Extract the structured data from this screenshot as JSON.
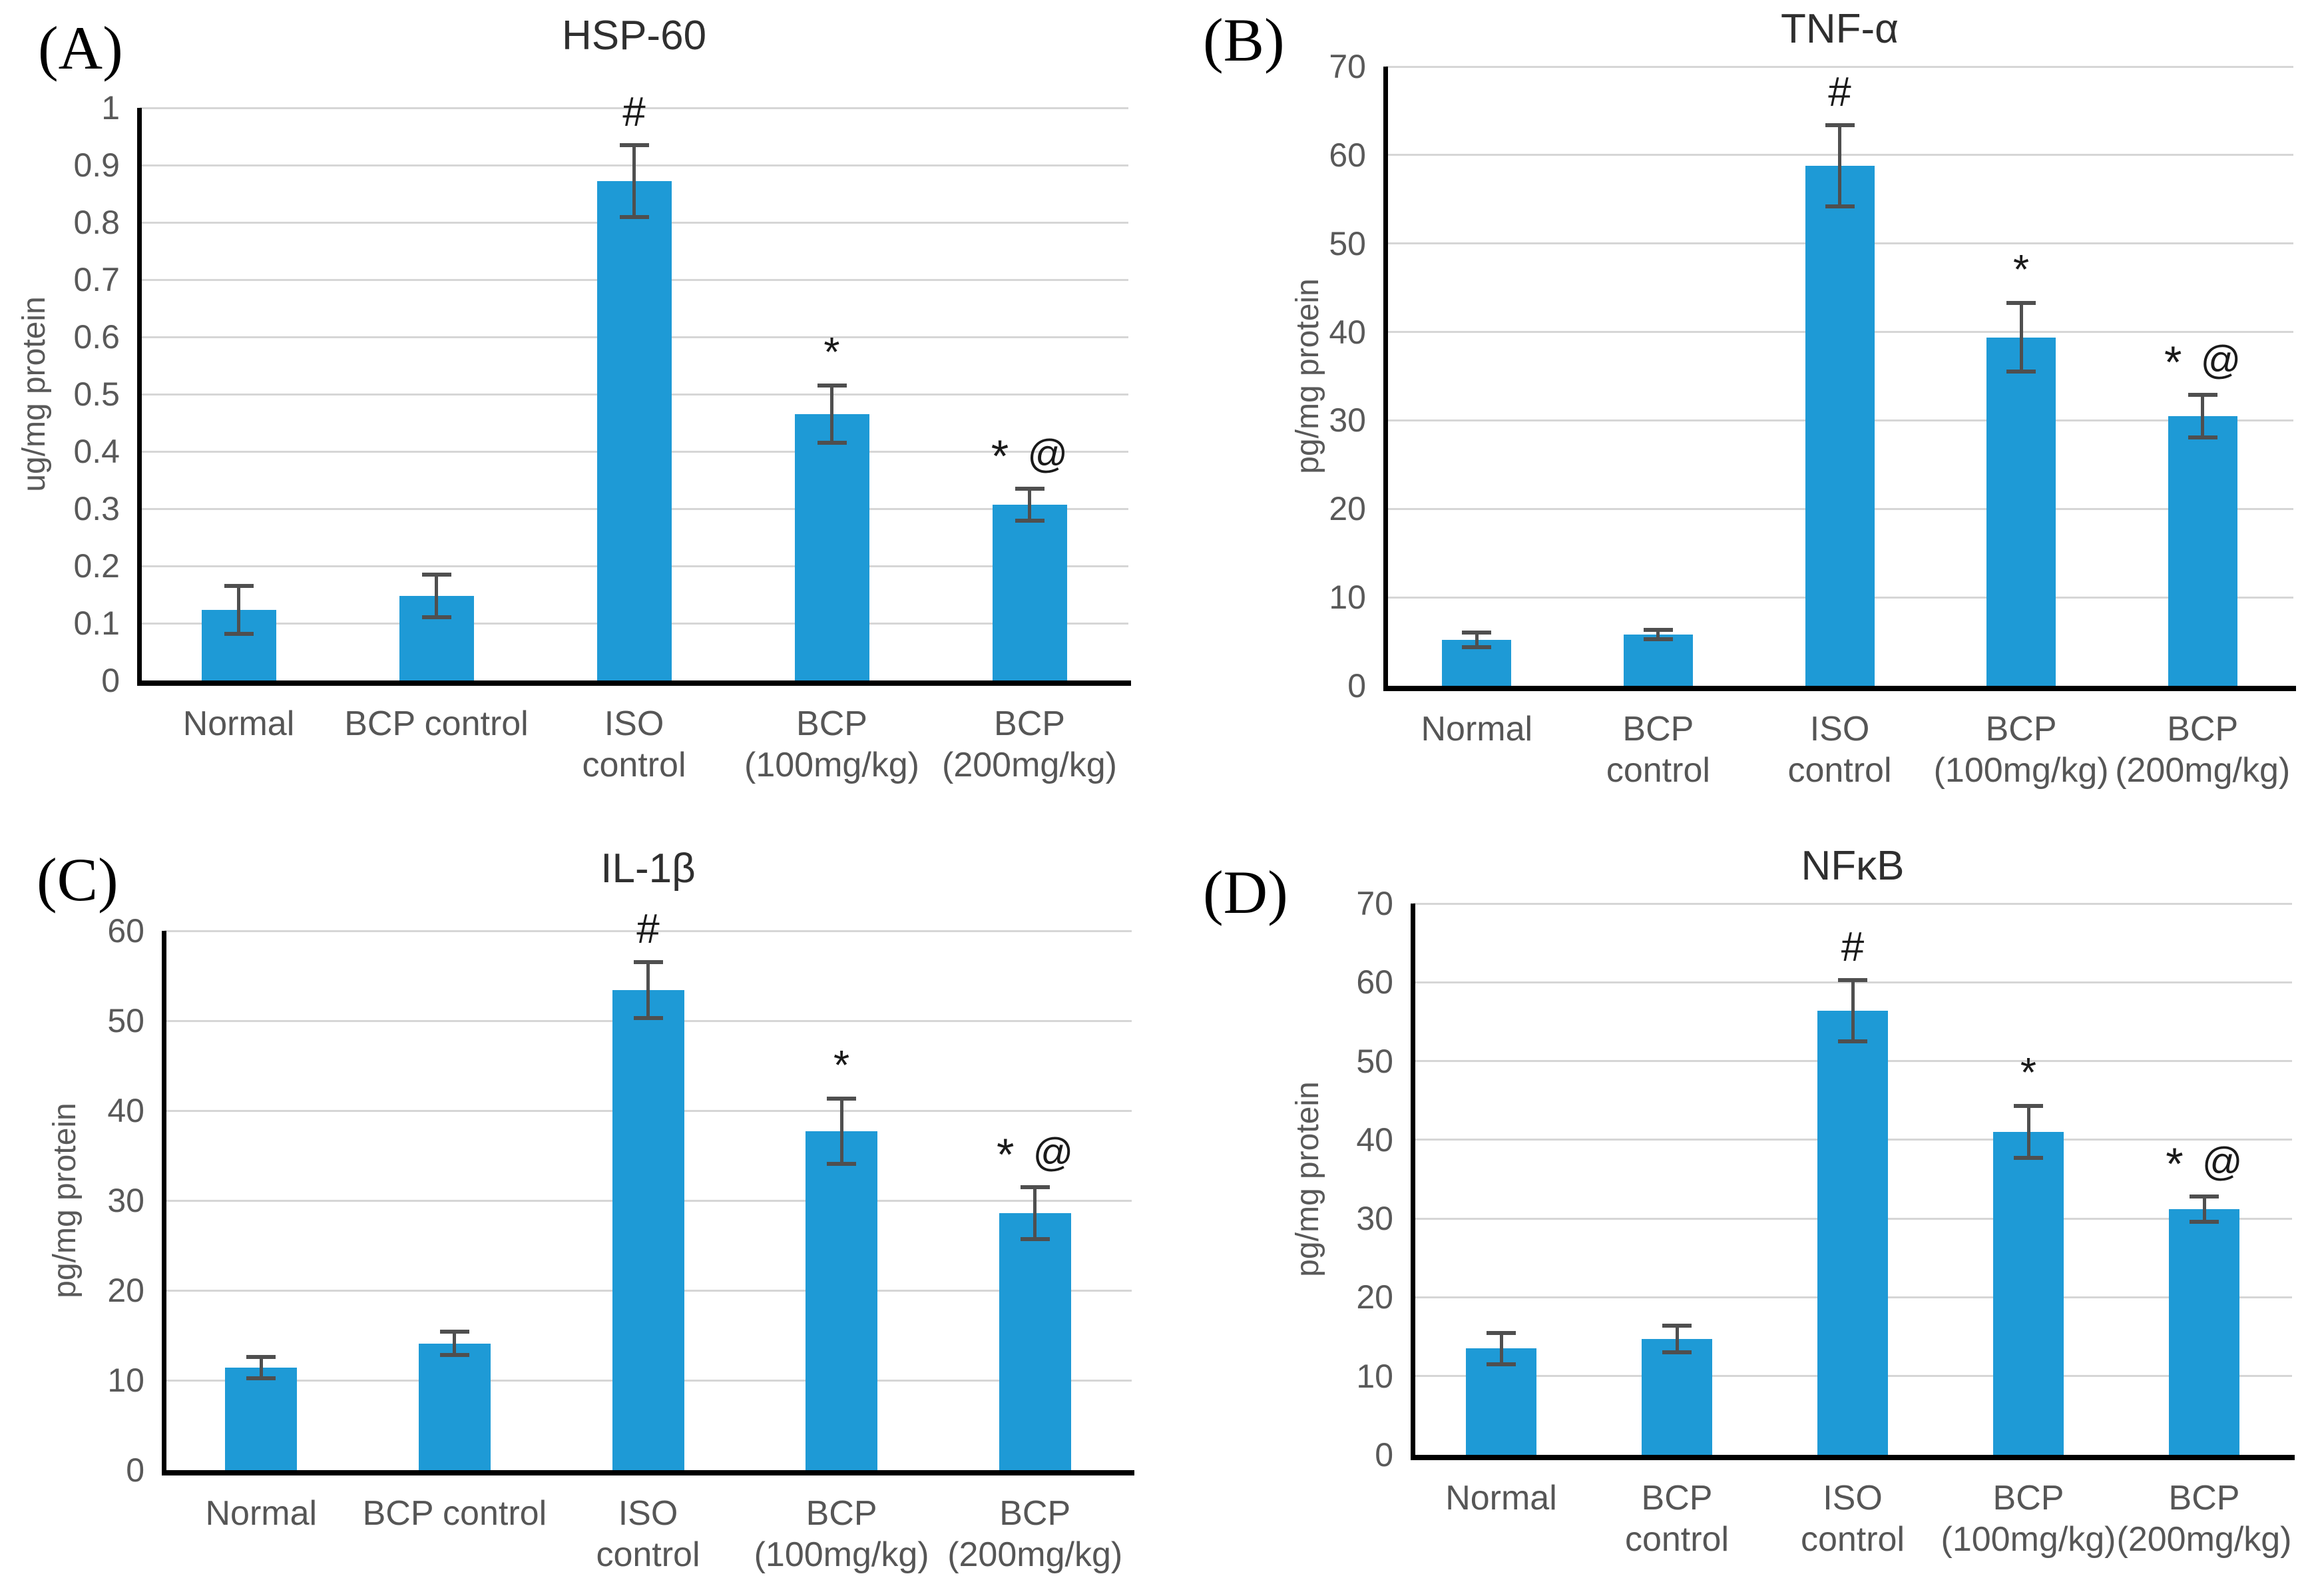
{
  "colors": {
    "bar": "#1E9AD6",
    "error_bar": "#4F4F4F",
    "gridline": "#D6D6D6",
    "axis": "#000000",
    "tick_label": "#595959",
    "title": "#2F2F2F",
    "annotation": "#1A1A1A"
  },
  "chart_data": [
    {
      "type": "bar",
      "panel_label": "(A)",
      "title": "HSP-60",
      "ylabel": "ug/mg protein",
      "ylim": [
        0,
        1
      ],
      "yticks": [
        "0",
        "0.1",
        "0.2",
        "0.3",
        "0.4",
        "0.5",
        "0.6",
        "0.7",
        "0.8",
        "0.9",
        "1"
      ],
      "grid": true,
      "legend": "none",
      "categories": [
        [
          "Normal"
        ],
        [
          "BCP control"
        ],
        [
          "ISO",
          "control"
        ],
        [
          "BCP",
          "(100mg/kg)"
        ],
        [
          "BCP",
          "(200mg/kg)"
        ]
      ],
      "values": [
        0.123,
        0.148,
        0.872,
        0.465,
        0.307
      ],
      "errors": [
        0.042,
        0.037,
        0.063,
        0.05,
        0.028
      ],
      "annotations": [
        "",
        "",
        "#",
        "*",
        "* @"
      ]
    },
    {
      "type": "bar",
      "panel_label": "(B)",
      "title": "TNF-α",
      "ylabel": "pg/mg protein",
      "ylim": [
        0,
        70
      ],
      "yticks": [
        "0",
        "10",
        "20",
        "30",
        "40",
        "50",
        "60",
        "70"
      ],
      "grid": true,
      "legend": "none",
      "categories": [
        [
          "Normal"
        ],
        [
          "BCP",
          "control"
        ],
        [
          "ISO",
          "control"
        ],
        [
          "BCP",
          "(100mg/kg)"
        ],
        [
          "BCP",
          "(200mg/kg)"
        ]
      ],
      "values": [
        5.2,
        5.8,
        58.8,
        39.4,
        30.5
      ],
      "errors": [
        0.8,
        0.5,
        4.6,
        3.9,
        2.4
      ],
      "annotations": [
        "",
        "",
        "#",
        "*",
        "* @"
      ]
    },
    {
      "type": "bar",
      "panel_label": "(C)",
      "title": "IL-1β",
      "ylabel": "pg/mg protein",
      "ylim": [
        0,
        60
      ],
      "yticks": [
        "0",
        "10",
        "20",
        "30",
        "40",
        "50",
        "60"
      ],
      "grid": true,
      "legend": "none",
      "categories": [
        [
          "Normal"
        ],
        [
          "BCP control"
        ],
        [
          "ISO",
          "control"
        ],
        [
          "BCP",
          "(100mg/kg)"
        ],
        [
          "BCP",
          "(200mg/kg)"
        ]
      ],
      "values": [
        11.4,
        14.1,
        53.4,
        37.7,
        28.6
      ],
      "errors": [
        1.2,
        1.3,
        3.1,
        3.6,
        2.9
      ],
      "annotations": [
        "",
        "",
        "#",
        "*",
        "* @"
      ]
    },
    {
      "type": "bar",
      "panel_label": "(D)",
      "title": "NFκB",
      "ylabel": "pg/mg protein",
      "ylim": [
        0,
        70
      ],
      "yticks": [
        "0",
        "10",
        "20",
        "30",
        "40",
        "50",
        "60",
        "70"
      ],
      "grid": true,
      "legend": "none",
      "categories": [
        [
          "Normal"
        ],
        [
          "BCP",
          "control"
        ],
        [
          "ISO",
          "control"
        ],
        [
          "BCP",
          "(100mg/kg)"
        ],
        [
          "BCP",
          "(200mg/kg)"
        ]
      ],
      "values": [
        13.5,
        14.7,
        56.4,
        41.0,
        31.2
      ],
      "errors": [
        2.0,
        1.7,
        3.9,
        3.3,
        1.6
      ],
      "annotations": [
        "",
        "",
        "#",
        "*",
        "* @"
      ]
    }
  ]
}
